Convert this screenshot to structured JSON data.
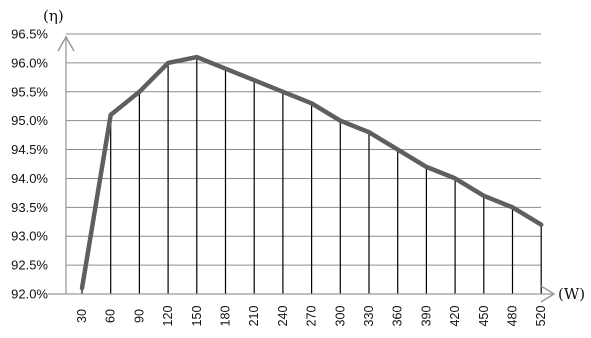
{
  "chart_data": {
    "type": "line",
    "ylabel": "(η)",
    "xlabel": "(W)",
    "x": [
      30,
      60,
      90,
      120,
      150,
      180,
      210,
      240,
      270,
      300,
      330,
      360,
      390,
      420,
      450,
      480,
      520
    ],
    "x_tick_labels": [
      "30",
      "60",
      "90",
      "120",
      "150",
      "180",
      "210",
      "240",
      "270",
      "300",
      "330",
      "360",
      "390",
      "420",
      "450",
      "480",
      "520"
    ],
    "y_tick_labels": [
      "92.0%",
      "92.5%",
      "93.0%",
      "93.5%",
      "94.0%",
      "94.5%",
      "95.0%",
      "95.5%",
      "96.0%",
      "96.5%"
    ],
    "ylim": [
      92.0,
      96.5
    ],
    "y_tick_step": 0.5,
    "series": [
      {
        "values": [
          92.1,
          95.1,
          95.5,
          96.0,
          96.1,
          95.9,
          95.7,
          95.5,
          95.3,
          95.0,
          94.8,
          94.5,
          94.2,
          94.0,
          93.7,
          93.5,
          93.2
        ]
      }
    ],
    "grid": true,
    "drop_lines": true,
    "legend": "none",
    "colors": {
      "line": "#5f5f5f",
      "grid": "#8c8c8c",
      "drop_line": "#000000",
      "axis_arrow": "#9a9a9a"
    }
  }
}
